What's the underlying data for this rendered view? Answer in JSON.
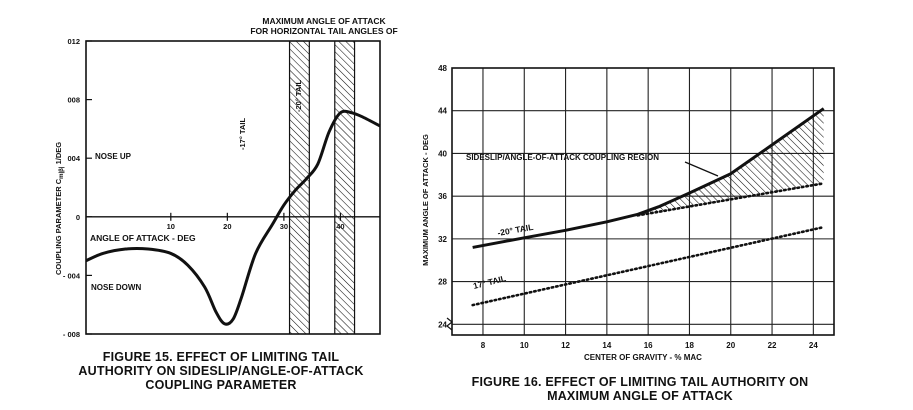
{
  "figure15": {
    "caption": [
      "FIGURE 15.  EFFECT OF LIMITING TAIL",
      "AUTHORITY ON SIDESLIP/ANGLE-OF-ATTACK",
      "COUPLING PARAMETER"
    ],
    "header": [
      "MAXIMUM ANGLE OF ATTACK",
      "FOR HORIZONTAL TAIL ANGLES OF"
    ],
    "chart_data": {
      "type": "line",
      "xlabel": "ANGLE OF ATTACK - DEG",
      "ylabel": "COUPLING PARAMETER C",
      "ylabel_sub": "m|β|",
      "ylabel_unit": " 1/DEG",
      "xlim": [
        -5,
        47
      ],
      "ylim": [
        -0.008,
        0.012
      ],
      "x_ticks": [
        10,
        20,
        30,
        40
      ],
      "x_tick_labels": [
        "10",
        "20",
        "30",
        "40"
      ],
      "y_ticks": [
        0.012,
        0.008,
        0.004,
        0,
        -0.004,
        -0.008
      ],
      "y_tick_labels": [
        "012",
        "008",
        "004",
        "0",
        "- 004",
        "- 008"
      ],
      "series": [
        {
          "x": [
            -5,
            -2,
            2,
            6,
            10,
            13,
            16,
            18,
            19.5,
            21,
            22.5,
            25,
            28,
            30,
            32,
            34,
            36,
            38,
            40,
            42,
            44,
            47
          ],
          "y": [
            -0.003,
            -0.0025,
            -0.0022,
            -0.0022,
            -0.0025,
            -0.0033,
            -0.0048,
            -0.0065,
            -0.0073,
            -0.007,
            -0.0055,
            -0.0025,
            -0.0005,
            0.0008,
            0.0018,
            0.0026,
            0.0036,
            0.0058,
            0.0071,
            0.0071,
            0.0068,
            0.0062
          ]
        }
      ],
      "shaded_bands": [
        {
          "label": "-17° TAIL",
          "x_start": 31,
          "x_end": 34.5
        },
        {
          "label": "-20° TAIL",
          "x_start": 39,
          "x_end": 42.5
        }
      ],
      "annotations": [
        "NOSE UP",
        "NOSE DOWN"
      ]
    }
  },
  "figure16": {
    "caption": [
      "FIGURE 16.  EFFECT OF LIMITING TAIL AUTHORITY ON",
      "MAXIMUM ANGLE OF ATTACK"
    ],
    "chart_data": {
      "type": "line",
      "xlabel": "CENTER OF GRAVITY - % MAC",
      "ylabel": "MAXIMUM ANGLE OF ATTACK - DEG",
      "xlim": [
        6.5,
        25
      ],
      "ylim": [
        23,
        48
      ],
      "grid": true,
      "x_ticks": [
        8,
        10,
        12,
        14,
        16,
        18,
        20,
        22,
        24
      ],
      "x_tick_labels": [
        "8",
        "10",
        "12",
        "14",
        "16",
        "18",
        "20",
        "22",
        "24"
      ],
      "y_ticks": [
        24,
        28,
        32,
        36,
        40,
        44,
        48
      ],
      "y_tick_labels": [
        "24",
        "28",
        "32",
        "36",
        "40",
        "44",
        "48"
      ],
      "series": [
        {
          "name": "-20° TAIL",
          "style": "solid",
          "x": [
            7.5,
            10,
            12,
            14,
            15.5,
            16.5,
            18,
            20,
            22,
            24.5
          ],
          "y": [
            31.2,
            32.1,
            32.8,
            33.6,
            34.3,
            35.0,
            36.3,
            38.1,
            40.8,
            44.2
          ]
        },
        {
          "name": "17° TAIL",
          "style": "dotted",
          "x": [
            7.5,
            24.5
          ],
          "y": [
            25.8,
            33.1
          ]
        },
        {
          "name": "",
          "style": "dotted",
          "x": [
            15.5,
            24.5
          ],
          "y": [
            34.2,
            37.2
          ]
        }
      ],
      "shaded_region": {
        "label": "SIDESLIP/ANGLE-OF-ATTACK COUPLING REGION",
        "x_start": 15.5,
        "x_end": 24.5
      }
    }
  },
  "colors": {
    "ink": "#111111",
    "paper": "#ffffff"
  }
}
